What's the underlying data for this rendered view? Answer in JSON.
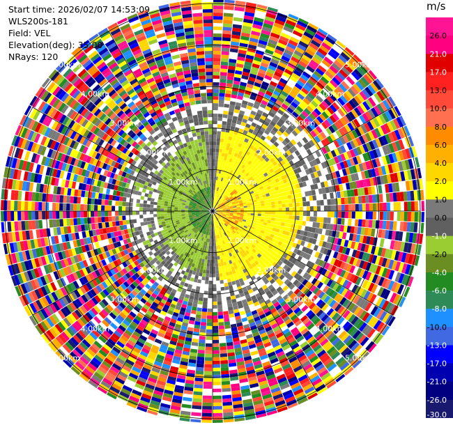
{
  "info": {
    "start_time_label": "Start time:",
    "start_time": "2026/02/07 14:53:09",
    "instrument": "WLS200s-181",
    "field_label": "Field:",
    "field": "VEL",
    "elevation_label": "Elevation(deg):",
    "elevation": "35.00",
    "nrays_label": "NRays:",
    "nrays": "120"
  },
  "colorbar": {
    "unit": "m/s",
    "ticks": [
      "26.0",
      "21.0",
      "17.0",
      "13.0",
      "10.0",
      "8.0",
      "6.0",
      "4.0",
      "2.0",
      "1.0",
      "0.0",
      "-1.0",
      "-2.0",
      "-4.0",
      "-6.0",
      "-8.0",
      "-10.0",
      "-13.0",
      "-17.0",
      "-21.0",
      "-26.0",
      "-30.0"
    ],
    "colors": [
      "#ff1493",
      "#ff0080",
      "#e00000",
      "#ff2020",
      "#ff4a3a",
      "#ff7050",
      "#ff8c00",
      "#ffb000",
      "#ffd700",
      "#ffff00",
      "#7a7a7a",
      "#606060",
      "#9acd32",
      "#6b8e23",
      "#228b22",
      "#2e8b57",
      "#1e90ff",
      "#4169e1",
      "#0000ff",
      "#0000b0",
      "#000080",
      "#191970"
    ]
  },
  "chart_data": {
    "type": "heatmap",
    "subtype": "polar PPI scan",
    "field": "VEL",
    "unit": "m/s",
    "nrays": 120,
    "elevation_deg": 35.0,
    "range_ring_labels": [
      "1.00km",
      "2.00km",
      "3.00km",
      "4.00km",
      "5.00km"
    ],
    "range_rings_km": [
      1,
      2,
      3,
      4,
      5
    ],
    "max_range_km": 5.1,
    "colorbar_ticks": [
      26.0,
      21.0,
      17.0,
      13.0,
      10.0,
      8.0,
      6.0,
      4.0,
      2.0,
      1.0,
      0.0,
      -1.0,
      -2.0,
      -4.0,
      -6.0,
      -8.0,
      -10.0,
      -13.0,
      -17.0,
      -21.0,
      -26.0,
      -30.0
    ],
    "pattern": {
      "near_range_east_velocity_ms": [
        2,
        8
      ],
      "near_range_west_velocity_ms": [
        -8,
        -1
      ],
      "far_range": "noise"
    }
  }
}
